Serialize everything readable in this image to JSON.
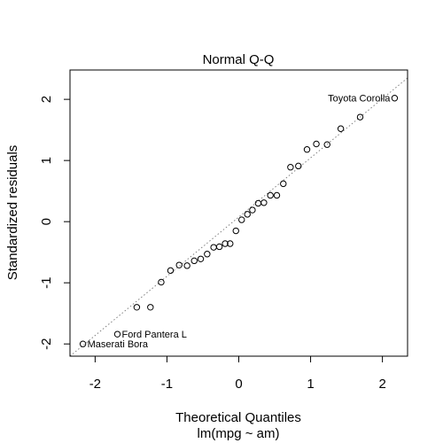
{
  "chart_data": {
    "type": "scatter",
    "title": "Normal Q-Q",
    "xlabel": "Theoretical Quantiles",
    "sublabel": "lm(mpg ~ am)",
    "ylabel": "Standardized residuals",
    "xlim": [
      -2.35,
      2.35
    ],
    "ylim": [
      -2.2,
      2.48
    ],
    "xticks": [
      -2,
      -1,
      0,
      1,
      2
    ],
    "xtick_labels": [
      "-2",
      "-1",
      "0",
      "1",
      "2"
    ],
    "yticks": [
      -2,
      -1,
      0,
      1,
      2
    ],
    "ytick_labels": [
      "-2",
      "-1",
      "0",
      "1",
      "2"
    ],
    "reference_line": {
      "x1": -2.35,
      "y1": -2.2,
      "x2": 2.35,
      "y2": 2.35,
      "style": "dotted",
      "color": "#808080"
    },
    "points": [
      {
        "x": -2.17,
        "y": -2.0
      },
      {
        "x": -1.69,
        "y": -1.84
      },
      {
        "x": -1.42,
        "y": -1.4
      },
      {
        "x": -1.23,
        "y": -1.4
      },
      {
        "x": -1.08,
        "y": -0.99
      },
      {
        "x": -0.95,
        "y": -0.8
      },
      {
        "x": -0.83,
        "y": -0.71
      },
      {
        "x": -0.72,
        "y": -0.72
      },
      {
        "x": -0.62,
        "y": -0.64
      },
      {
        "x": -0.53,
        "y": -0.61
      },
      {
        "x": -0.44,
        "y": -0.53
      },
      {
        "x": -0.35,
        "y": -0.42
      },
      {
        "x": -0.27,
        "y": -0.41
      },
      {
        "x": -0.19,
        "y": -0.36
      },
      {
        "x": -0.12,
        "y": -0.36
      },
      {
        "x": -0.04,
        "y": -0.15
      },
      {
        "x": 0.04,
        "y": 0.03
      },
      {
        "x": 0.12,
        "y": 0.12
      },
      {
        "x": 0.19,
        "y": 0.19
      },
      {
        "x": 0.27,
        "y": 0.3
      },
      {
        "x": 0.35,
        "y": 0.31
      },
      {
        "x": 0.44,
        "y": 0.43
      },
      {
        "x": 0.53,
        "y": 0.43
      },
      {
        "x": 0.62,
        "y": 0.62
      },
      {
        "x": 0.72,
        "y": 0.89
      },
      {
        "x": 0.83,
        "y": 0.91
      },
      {
        "x": 0.95,
        "y": 1.18
      },
      {
        "x": 1.08,
        "y": 1.27
      },
      {
        "x": 1.23,
        "y": 1.26
      },
      {
        "x": 1.42,
        "y": 1.52
      },
      {
        "x": 1.69,
        "y": 1.71
      },
      {
        "x": 2.17,
        "y": 2.02
      }
    ],
    "annotations": [
      {
        "label": "Toyota Corolla",
        "x": 2.17,
        "y": 2.02,
        "anchor": "end"
      },
      {
        "label": "Ford Pantera L",
        "x": -1.69,
        "y": -1.84,
        "anchor": "start"
      },
      {
        "label": "Maserati Bora",
        "x": -2.17,
        "y": -2.0,
        "anchor": "start"
      }
    ]
  }
}
